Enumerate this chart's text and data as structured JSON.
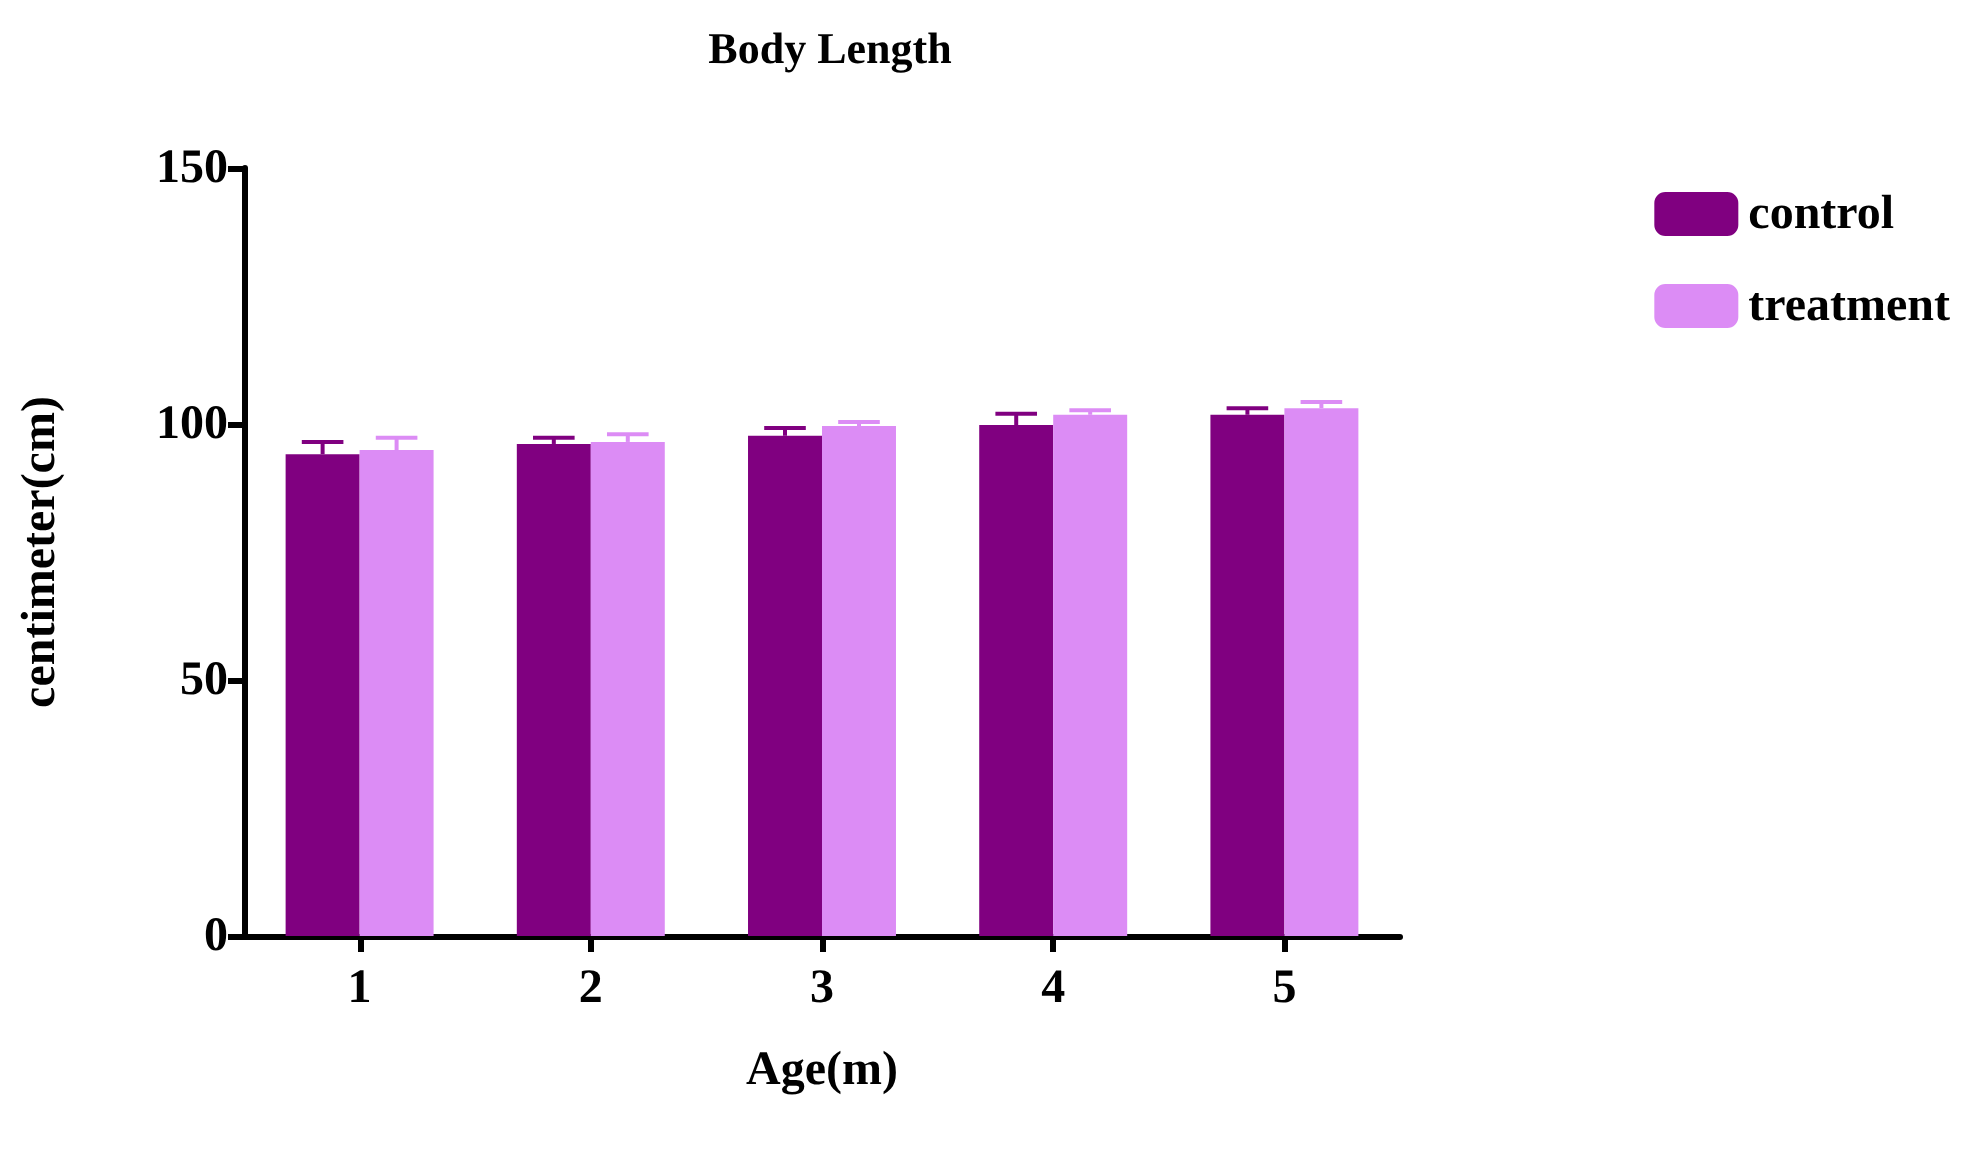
{
  "chart_data": {
    "type": "bar",
    "title": "Body Length",
    "xlabel": "Age(m)",
    "ylabel": "centimeter(cm)",
    "categories": [
      "1",
      "2",
      "3",
      "4",
      "5"
    ],
    "series": [
      {
        "name": "control",
        "color": "#800080",
        "values": [
          94.1,
          96.1,
          97.7,
          99.8,
          101.8
        ],
        "errors": [
          [
            94.1,
            96.5
          ],
          [
            96.1,
            97.3
          ],
          [
            97.7,
            99.2
          ],
          [
            99.8,
            102
          ],
          [
            101.8,
            103.1
          ]
        ]
      },
      {
        "name": "treatment",
        "color": "#dc8cf5",
        "values": [
          94.9,
          96.5,
          99.6,
          101.8,
          103.1
        ],
        "errors": [
          [
            94.9,
            97.3
          ],
          [
            96.5,
            98
          ],
          [
            99.6,
            100.4
          ],
          [
            101.8,
            102.7
          ],
          [
            103.1,
            104.3
          ]
        ]
      }
    ],
    "ylim": [
      0,
      150
    ],
    "yticks": [
      0,
      50,
      100,
      150
    ],
    "grid": false,
    "legend": "top right"
  }
}
